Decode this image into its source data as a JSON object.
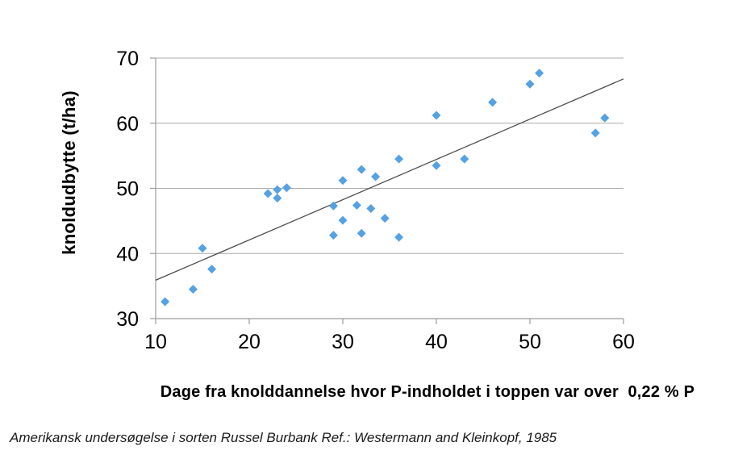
{
  "chart_data": {
    "type": "scatter",
    "title": "",
    "xlabel": "Dage fra knolddannelse hvor P-indholdet i toppen var over  0,22 % P",
    "ylabel": "knoldudbytte (t/ha)",
    "caption": "Amerikansk undersøgelse i sorten Russel Burbank Ref.: Westermann and Kleinkopf, 1985",
    "xlim": [
      10,
      60
    ],
    "ylim": [
      30,
      70
    ],
    "x_ticks": [
      10,
      20,
      30,
      40,
      50,
      60
    ],
    "y_ticks": [
      30,
      40,
      50,
      60,
      70
    ],
    "grid": "horizontal",
    "legend": "none",
    "series": [
      {
        "name": "knoldudbytte (t/ha)",
        "marker": "diamond",
        "marker_size": 11,
        "color": "#55A1E1",
        "points": [
          [
            11,
            32.6
          ],
          [
            14,
            34.5
          ],
          [
            15,
            40.8
          ],
          [
            16,
            37.6
          ],
          [
            22,
            49.2
          ],
          [
            23,
            48.5
          ],
          [
            23,
            49.8
          ],
          [
            24,
            50.1
          ],
          [
            29,
            42.8
          ],
          [
            29,
            47.3
          ],
          [
            30,
            45.1
          ],
          [
            30,
            51.2
          ],
          [
            31.5,
            47.4
          ],
          [
            32,
            43.1
          ],
          [
            32,
            52.9
          ],
          [
            33,
            46.9
          ],
          [
            33.5,
            51.8
          ],
          [
            34.5,
            45.4
          ],
          [
            36,
            42.5
          ],
          [
            36,
            54.5
          ],
          [
            40,
            53.5
          ],
          [
            40,
            61.2
          ],
          [
            43,
            54.5
          ],
          [
            46,
            63.2
          ],
          [
            50,
            66.0
          ],
          [
            51,
            67.7
          ],
          [
            57,
            58.5
          ],
          [
            58,
            60.8
          ]
        ]
      }
    ],
    "trend_line": {
      "x1": 10,
      "y1": 35.9,
      "x2": 60,
      "y2": 66.8
    },
    "colors": {
      "marker": "#55A1E1",
      "gridline": "#ABABAB",
      "axis": "#9C9C9C",
      "trend": "#4D4D4D",
      "tick_label": "#000000"
    }
  }
}
